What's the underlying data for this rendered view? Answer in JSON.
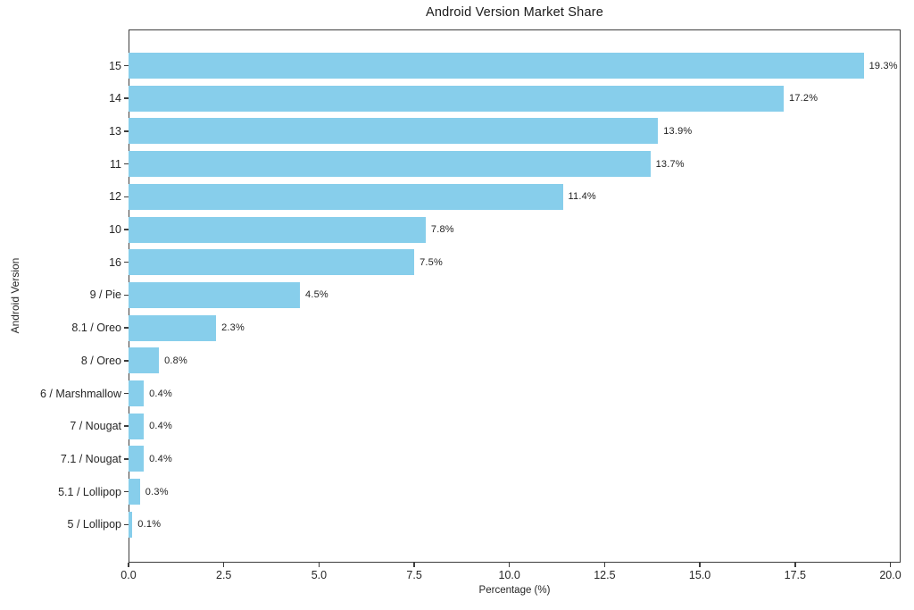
{
  "chart_data": {
    "type": "bar",
    "orientation": "horizontal",
    "title": "Android Version Market Share",
    "xlabel": "Percentage (%)",
    "ylabel": "Android Version",
    "categories": [
      "15",
      "14",
      "13",
      "11",
      "12",
      "10",
      "16",
      "9 / Pie",
      "8.1 / Oreo",
      "8 / Oreo",
      "6 / Marshmallow",
      "7 / Nougat",
      "7.1 / Nougat",
      "5.1 / Lollipop",
      "5 / Lollipop"
    ],
    "values": [
      19.3,
      17.2,
      13.9,
      13.7,
      11.4,
      7.8,
      7.5,
      4.5,
      2.3,
      0.8,
      0.4,
      0.4,
      0.4,
      0.3,
      0.1
    ],
    "value_labels": [
      "19.3%",
      "17.2%",
      "13.9%",
      "13.7%",
      "11.4%",
      "7.8%",
      "7.5%",
      "4.5%",
      "2.3%",
      "0.8%",
      "0.4%",
      "0.4%",
      "0.4%",
      "0.3%",
      "0.1%"
    ],
    "x_tick_values": [
      0,
      2.5,
      5,
      7.5,
      10,
      12.5,
      15,
      17.5,
      20
    ],
    "x_tick_labels": [
      "0.0",
      "2.5",
      "5.0",
      "7.5",
      "10.0",
      "12.5",
      "15.0",
      "17.5",
      "20.0"
    ],
    "xlim": [
      0,
      20.27
    ],
    "bar_color": "#87CEEB",
    "text_color": "#262626",
    "spine_color": "#3d3d3d",
    "background_color": "#ffffff",
    "grid": false,
    "legend": false
  }
}
